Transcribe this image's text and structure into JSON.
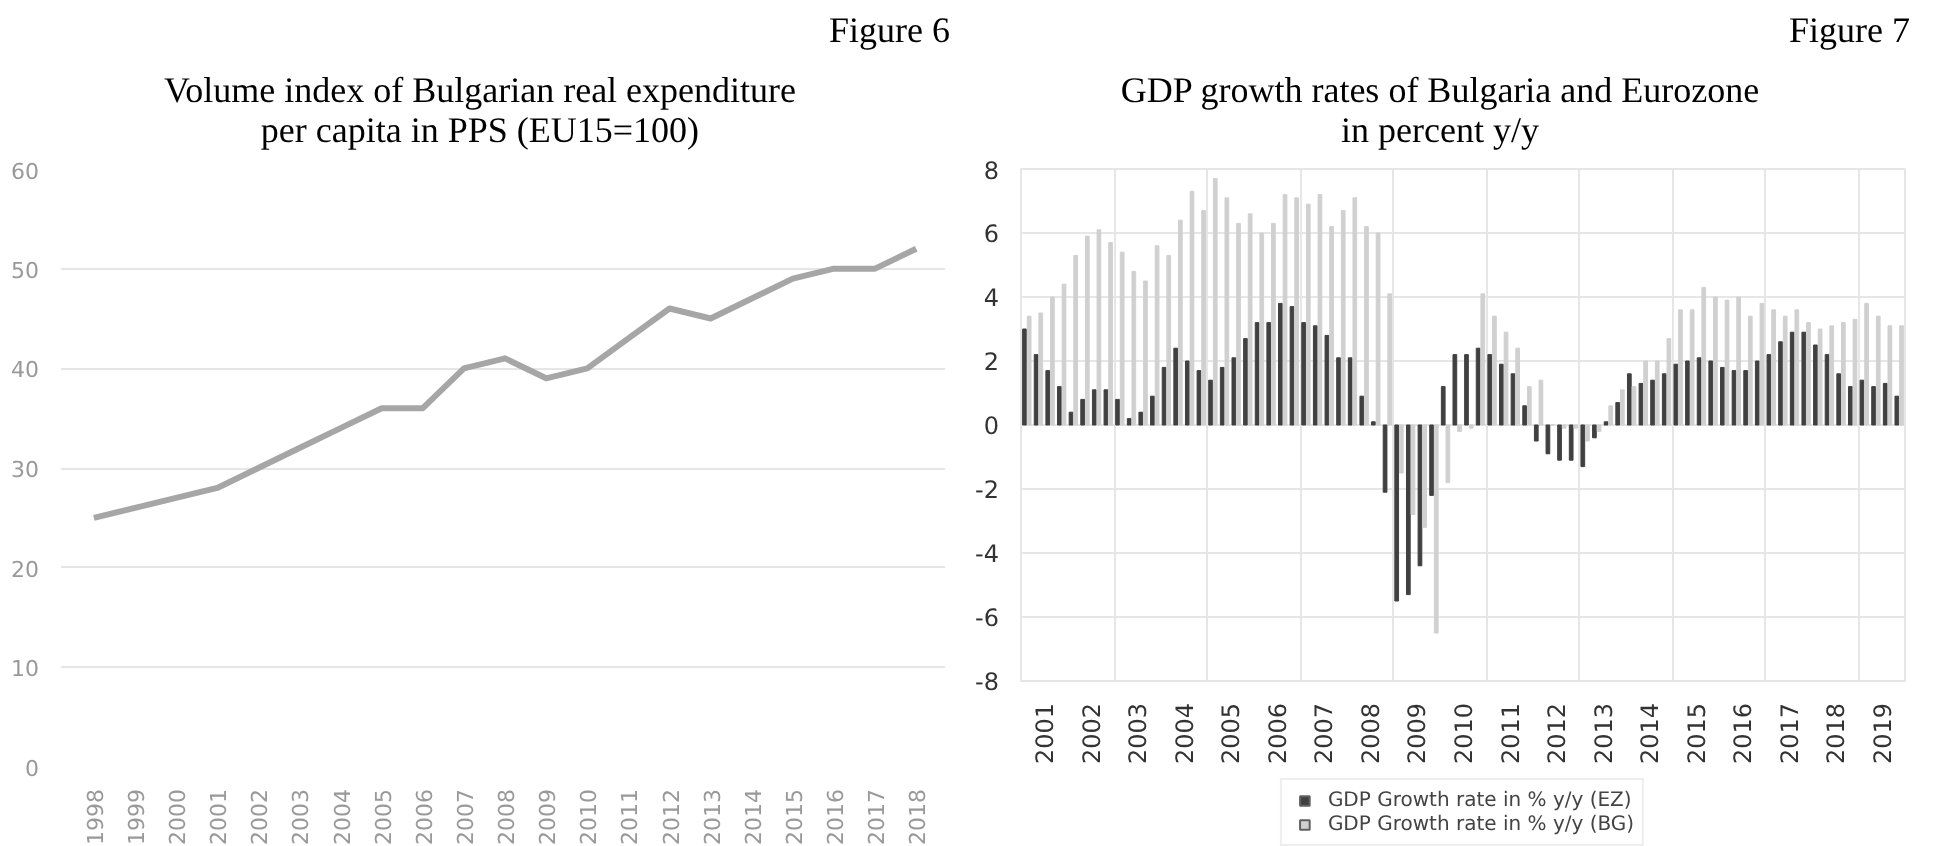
{
  "chart_data": [
    {
      "type": "line",
      "title": "Volume index of Bulgarian real expenditure per capita in PPS (EU15=100)",
      "annotations": [
        "Figure 6"
      ],
      "categories": [
        "1998",
        "1999",
        "2000",
        "2001",
        "2002",
        "2003",
        "2004",
        "2005",
        "2006",
        "2007",
        "2008",
        "2009",
        "2010",
        "2011",
        "2012",
        "2013",
        "2014",
        "2015",
        "2016",
        "2017",
        "2018"
      ],
      "values": [
        25,
        26,
        27,
        28,
        30,
        32,
        34,
        36,
        36,
        40,
        41,
        39,
        40,
        43,
        46,
        45,
        47,
        49,
        50,
        50,
        52
      ],
      "color": "#a6a6a6",
      "ylim": [
        0,
        60
      ],
      "yticks": [
        0,
        10,
        20,
        30,
        40,
        50,
        60
      ],
      "grid": "y"
    },
    {
      "type": "bar",
      "title": "GDP growth rates of Bulgaria and Eurozone in percent y/y",
      "annotations": [
        "Figure 7"
      ],
      "x": [
        2001.125,
        2001.375,
        2001.625,
        2001.875,
        2002.125,
        2002.375,
        2002.625,
        2002.875,
        2003.125,
        2003.375,
        2003.625,
        2003.875,
        2004.125,
        2004.375,
        2004.625,
        2004.875,
        2005.125,
        2005.375,
        2005.625,
        2005.875,
        2006.125,
        2006.375,
        2006.625,
        2006.875,
        2007.125,
        2007.375,
        2007.625,
        2007.875,
        2008.125,
        2008.375,
        2008.625,
        2008.875,
        2009.125,
        2009.375,
        2009.625,
        2009.875,
        2010.125,
        2010.375,
        2010.625,
        2010.875,
        2011.125,
        2011.375,
        2011.625,
        2011.875,
        2012.125,
        2012.375,
        2012.625,
        2012.875,
        2013.125,
        2013.375,
        2013.625,
        2013.875,
        2014.125,
        2014.375,
        2014.625,
        2014.875,
        2015.125,
        2015.375,
        2015.625,
        2015.875,
        2016.125,
        2016.375,
        2016.625,
        2016.875,
        2017.125,
        2017.375,
        2017.625,
        2017.875,
        2018.125,
        2018.375,
        2018.625,
        2018.875,
        2019.125,
        2019.375,
        2019.625,
        2019.875
      ],
      "series": [
        {
          "name": "GDP Growth rate in % y/y (EZ)",
          "color": "#404040",
          "values": [
            3.0,
            2.2,
            1.7,
            1.2,
            0.4,
            0.8,
            1.1,
            1.1,
            0.8,
            0.2,
            0.4,
            0.9,
            1.8,
            2.4,
            2.0,
            1.7,
            1.4,
            1.8,
            2.1,
            2.7,
            3.2,
            3.2,
            3.8,
            3.7,
            3.2,
            3.1,
            2.8,
            2.1,
            2.1,
            0.9,
            0.1,
            -2.1,
            -5.5,
            -5.3,
            -4.4,
            -2.2,
            1.2,
            2.2,
            2.2,
            2.4,
            2.2,
            1.9,
            1.6,
            0.6,
            -0.5,
            -0.9,
            -1.1,
            -1.1,
            -1.3,
            -0.4,
            0.1,
            0.7,
            1.6,
            1.3,
            1.4,
            1.6,
            1.9,
            2.0,
            2.1,
            2.0,
            1.8,
            1.7,
            1.7,
            2.0,
            2.2,
            2.6,
            2.9,
            2.9,
            2.5,
            2.2,
            1.6,
            1.2,
            1.4,
            1.2,
            1.3,
            0.9
          ]
        },
        {
          "name": "GDP Growth rate in % y/y (BG)",
          "color": "#d0d0d0",
          "values": [
            3.4,
            3.5,
            4.0,
            4.4,
            5.3,
            5.9,
            6.1,
            5.7,
            5.4,
            4.8,
            4.5,
            5.6,
            5.3,
            6.4,
            7.3,
            6.7,
            7.7,
            7.1,
            6.3,
            6.6,
            6.0,
            6.3,
            7.2,
            7.1,
            6.9,
            7.2,
            6.2,
            6.7,
            7.1,
            6.2,
            6.0,
            4.1,
            -1.5,
            -2.8,
            -3.2,
            -6.5,
            -1.8,
            -0.2,
            -0.1,
            4.1,
            3.4,
            2.9,
            2.4,
            1.2,
            1.4,
            0.0,
            -0.1,
            -0.1,
            -0.5,
            -0.2,
            0.6,
            1.1,
            1.2,
            2.0,
            2.0,
            2.7,
            3.6,
            3.6,
            4.3,
            4.0,
            3.9,
            4.0,
            3.4,
            3.8,
            3.6,
            3.4,
            3.6,
            3.2,
            3.0,
            3.1,
            3.2,
            3.3,
            3.8,
            3.4,
            3.1,
            3.1
          ]
        }
      ],
      "xlim": [
        2001,
        2020
      ],
      "xticks": [
        {
          "value": 2001.5,
          "label": "2001"
        },
        {
          "value": 2002.5,
          "label": "2002"
        },
        {
          "value": 2003.5,
          "label": "2003"
        },
        {
          "value": 2004.5,
          "label": "2004"
        },
        {
          "value": 2005.5,
          "label": "2005"
        },
        {
          "value": 2006.5,
          "label": "2006"
        },
        {
          "value": 2007.5,
          "label": "2007"
        },
        {
          "value": 2008.5,
          "label": "2008"
        },
        {
          "value": 2009.5,
          "label": "2009"
        },
        {
          "value": 2010.5,
          "label": "2010"
        },
        {
          "value": 2011.5,
          "label": "2011"
        },
        {
          "value": 2012.5,
          "label": "2012"
        },
        {
          "value": 2013.5,
          "label": "2013"
        },
        {
          "value": 2014.5,
          "label": "2014"
        },
        {
          "value": 2015.5,
          "label": "2015"
        },
        {
          "value": 2016.5,
          "label": "2016"
        },
        {
          "value": 2017.5,
          "label": "2017"
        },
        {
          "value": 2018.5,
          "label": "2018"
        },
        {
          "value": 2019.5,
          "label": "2019"
        },
        {
          "value": 2003,
          "label": null
        },
        {
          "value": 2005,
          "label": null
        },
        {
          "value": 2007,
          "label": null
        },
        {
          "value": 2009,
          "label": null
        },
        {
          "value": 2011,
          "label": null
        },
        {
          "value": 2013,
          "label": null
        },
        {
          "value": 2015,
          "label": null
        },
        {
          "value": 2017,
          "label": null
        },
        {
          "value": 2019,
          "label": null
        }
      ],
      "ylim": [
        -8,
        8
      ],
      "yticks": [
        -8,
        -6,
        -4,
        -2,
        0,
        2,
        4,
        6,
        8
      ],
      "grid": true,
      "legend": "bottom"
    }
  ]
}
